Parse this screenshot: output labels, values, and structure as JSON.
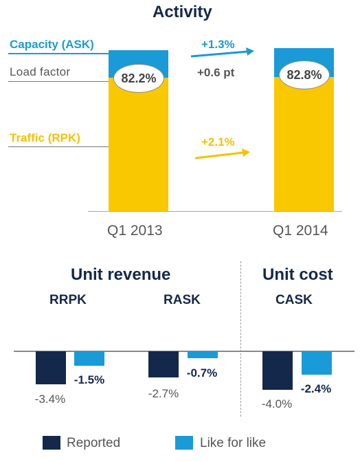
{
  "colors": {
    "navy": "#14284b",
    "blue": "#1a9ad6",
    "gold": "#f9c800",
    "grey": "#555555"
  },
  "activity": {
    "title": "Activity",
    "labels": {
      "capacity": "Capacity (ASK)",
      "load_factor": "Load factor",
      "traffic": "Traffic (RPK)"
    },
    "deltas": {
      "capacity": "+1.3%",
      "load_factor": "+0.6 pt",
      "traffic": "+2.1%"
    },
    "periods": [
      "Q1 2013",
      "Q1 2014"
    ],
    "load_factors": [
      "82.2%",
      "82.8%"
    ]
  },
  "unit_revenue": {
    "title": "Unit revenue",
    "groups": [
      "RRPK",
      "RASK"
    ]
  },
  "unit_cost": {
    "title": "Unit cost",
    "groups": [
      "CASK"
    ]
  },
  "legend": {
    "reported": "Reported",
    "like_for_like": "Like for like"
  },
  "chart_data": [
    {
      "type": "bar",
      "title": "Activity",
      "categories": [
        "Q1 2013",
        "Q1 2014"
      ],
      "series": [
        {
          "name": "Traffic (RPK)",
          "values": [
            82.2,
            84.0
          ]
        },
        {
          "name": "Capacity (ASK)",
          "values": [
            100,
            101.3
          ]
        }
      ],
      "annotations": {
        "capacity_change": "+1.3%",
        "traffic_change": "+2.1%",
        "load_factor_change": "+0.6 pt",
        "load_factor": [
          "82.2%",
          "82.8%"
        ]
      }
    },
    {
      "type": "bar",
      "title": "Unit revenue",
      "categories": [
        "RRPK",
        "RASK"
      ],
      "series": [
        {
          "name": "Reported",
          "values": [
            -3.4,
            -2.7
          ]
        },
        {
          "name": "Like for like",
          "values": [
            -1.5,
            -0.7
          ]
        }
      ],
      "labels": {
        "Reported": [
          "-3.4%",
          "-2.7%"
        ],
        "Like for like": [
          "-1.5%",
          "-0.7%"
        ]
      }
    },
    {
      "type": "bar",
      "title": "Unit cost",
      "categories": [
        "CASK"
      ],
      "series": [
        {
          "name": "Reported",
          "values": [
            -4.0
          ]
        },
        {
          "name": "Like for like",
          "values": [
            -2.4
          ]
        }
      ],
      "labels": {
        "Reported": [
          "-4.0%"
        ],
        "Like for like": [
          "-2.4%"
        ]
      }
    }
  ]
}
